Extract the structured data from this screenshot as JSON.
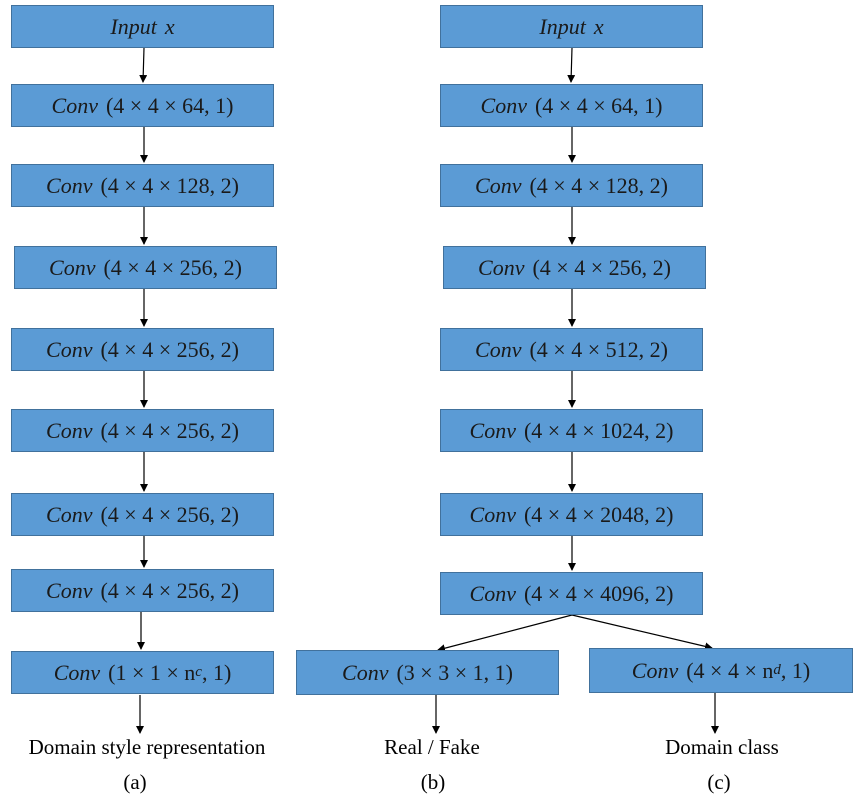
{
  "panel_a": {
    "nodes": [
      {
        "op": "Input",
        "arg": "x"
      },
      {
        "op": "Conv",
        "arg": "(4 × 4 × 64, 1)"
      },
      {
        "op": "Conv",
        "arg": "(4 × 4 × 128, 2)"
      },
      {
        "op": "Conv",
        "arg": "(4 × 4 × 256, 2)"
      },
      {
        "op": "Conv",
        "arg": "(4 × 4 × 256, 2)"
      },
      {
        "op": "Conv",
        "arg": "(4 × 4 × 256, 2)"
      },
      {
        "op": "Conv",
        "arg": "(4 × 4 × 256, 2)"
      },
      {
        "op": "Conv",
        "arg": "(4 × 4 × 256, 2)"
      },
      {
        "op": "Conv",
        "arg": "(1 × 1 × n",
        "sub": "c",
        "tail": ", 1)"
      }
    ],
    "output": "Domain style representation",
    "label": "(a)"
  },
  "panel_bc": {
    "nodes": [
      {
        "op": "Input",
        "arg": "x"
      },
      {
        "op": "Conv",
        "arg": "(4 × 4 × 64, 1)"
      },
      {
        "op": "Conv",
        "arg": "(4 × 4 × 128, 2)"
      },
      {
        "op": "Conv",
        "arg": "(4 × 4 × 256, 2)"
      },
      {
        "op": "Conv",
        "arg": "(4 × 4 × 512, 2)"
      },
      {
        "op": "Conv",
        "arg": "(4 × 4 × 1024, 2)"
      },
      {
        "op": "Conv",
        "arg": "(4 × 4 × 2048, 2)"
      },
      {
        "op": "Conv",
        "arg": "(4 × 4 × 4096, 2)"
      }
    ]
  },
  "panel_b": {
    "head": {
      "op": "Conv",
      "arg": "(3 × 3 × 1, 1)"
    },
    "output": "Real / Fake",
    "label": "(b)"
  },
  "panel_c": {
    "head": {
      "op": "Conv",
      "arg": "(4 × 4 × n",
      "sub": "d",
      "tail": ", 1)"
    },
    "output": "Domain class",
    "label": "(c)"
  },
  "colors": {
    "node_fill": "#5b9bd5",
    "node_border": "#41719c",
    "arrow": "#000000"
  }
}
